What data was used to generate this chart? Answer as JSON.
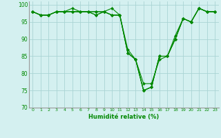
{
  "xlabel": "Humidité relative (%)",
  "background_color": "#d4f0f0",
  "grid_color": "#aad4d4",
  "line_color": "#008800",
  "xlim": [
    -0.5,
    23.5
  ],
  "ylim": [
    70,
    101
  ],
  "yticks": [
    70,
    75,
    80,
    85,
    90,
    95,
    100
  ],
  "xticks": [
    0,
    1,
    2,
    3,
    4,
    5,
    6,
    7,
    8,
    9,
    10,
    11,
    12,
    13,
    14,
    15,
    16,
    17,
    18,
    19,
    20,
    21,
    22,
    23
  ],
  "series": [
    [
      98,
      97,
      97,
      98,
      98,
      99,
      98,
      98,
      98,
      98,
      99,
      97,
      86,
      84,
      77,
      77,
      84,
      85,
      91,
      96,
      95,
      99,
      98,
      98
    ],
    [
      98,
      97,
      97,
      98,
      98,
      98,
      98,
      98,
      98,
      98,
      97,
      97,
      87,
      84,
      75,
      76,
      85,
      85,
      90,
      96,
      95,
      99,
      98,
      98
    ],
    [
      98,
      97,
      97,
      98,
      98,
      98,
      98,
      98,
      97,
      98,
      97,
      97,
      86,
      84,
      75,
      76,
      85,
      85,
      90,
      96,
      95,
      99,
      98,
      98
    ],
    [
      98,
      97,
      97,
      98,
      98,
      98,
      98,
      98,
      97,
      98,
      97,
      97,
      86,
      84,
      75,
      76,
      85,
      85,
      90,
      96,
      95,
      99,
      98,
      98
    ]
  ]
}
